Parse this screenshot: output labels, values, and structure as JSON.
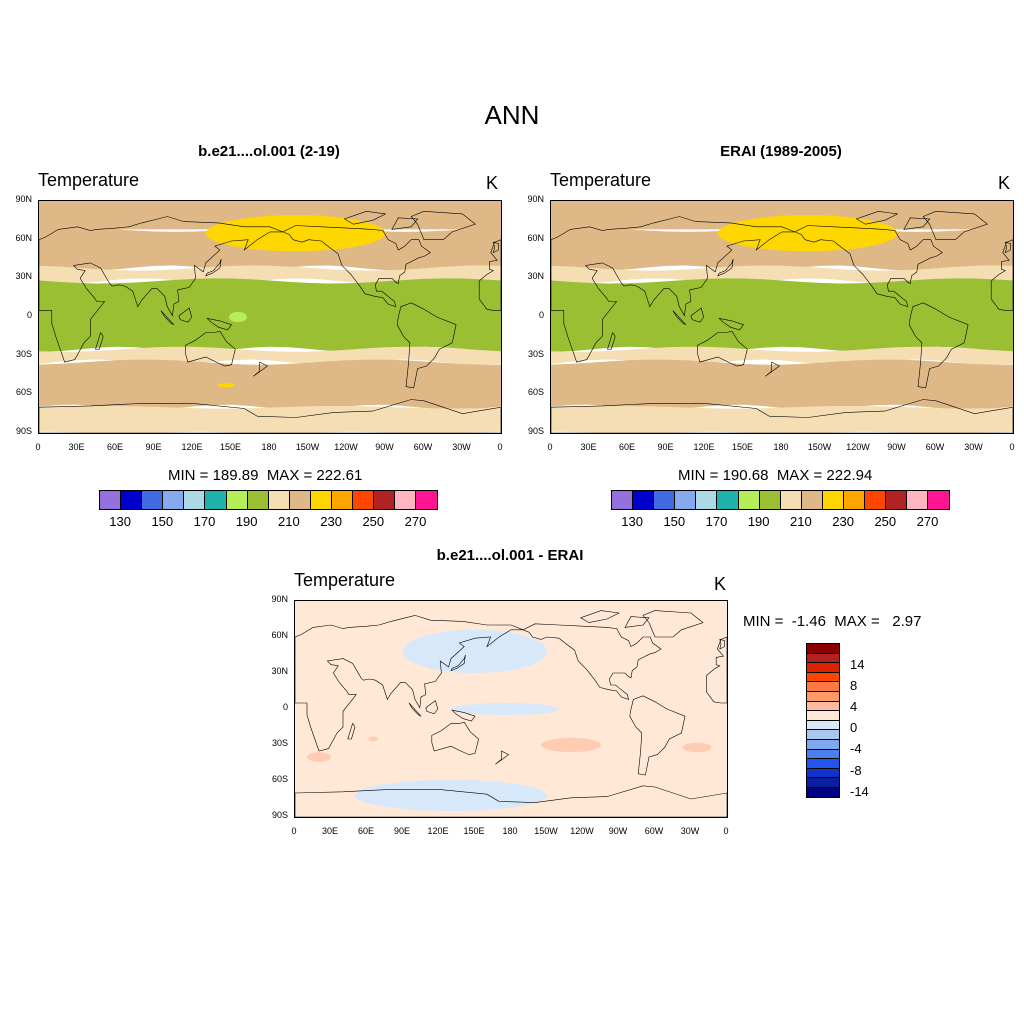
{
  "title": "ANN",
  "panels": [
    {
      "id": "model",
      "title": "b.e21....ol.001 (2-19)",
      "variable": "Temperature",
      "unit": "K",
      "min_label": "MIN = 189.89",
      "max_label": "MAX = 222.61"
    },
    {
      "id": "obs",
      "title": "ERAI (1989-2005)",
      "variable": "Temperature",
      "unit": "K",
      "min_label": "MIN = 190.68",
      "max_label": "MAX = 222.94"
    },
    {
      "id": "diff",
      "title": "b.e21....ol.001 - ERAI",
      "variable": "Temperature",
      "unit": "K",
      "min_label": "MIN =  -1.46",
      "max_label": "MAX =   2.97"
    }
  ],
  "lat_ticks": [
    "90N",
    "60N",
    "30N",
    "0",
    "30S",
    "60S",
    "90S"
  ],
  "lon_ticks": [
    "0",
    "30E",
    "60E",
    "90E",
    "120E",
    "150E",
    "180",
    "150W",
    "120W",
    "90W",
    "60W",
    "30W",
    "0"
  ],
  "abs_colorbar": {
    "colors": [
      "#9370DB",
      "#0000CD",
      "#4169E1",
      "#87A9F0",
      "#ADD8E6",
      "#20B2AA",
      "#B6EE5A",
      "#9ABF33",
      "#F5DEB3",
      "#DEB887",
      "#FFD700",
      "#FFA500",
      "#FF4500",
      "#B22222",
      "#FFB6C1",
      "#FF1493"
    ],
    "labels": [
      "130",
      "150",
      "170",
      "190",
      "210",
      "230",
      "250",
      "270"
    ]
  },
  "diff_colorbar": {
    "colors": [
      "#8B0000",
      "#B22222",
      "#DD2200",
      "#FF4500",
      "#FF7744",
      "#FF9966",
      "#FFBBA0",
      "#FFE8D6",
      "#D6E8FA",
      "#A8C8F0",
      "#7FA9EE",
      "#4A7FEE",
      "#2255EE",
      "#1133CC",
      "#0A1FA0",
      "#000080"
    ],
    "labels": [
      "14",
      "8",
      "4",
      "0",
      "-4",
      "-8",
      "-14"
    ]
  },
  "colors": {
    "band_green": "#9ABF33",
    "band_wheat": "#F5DEB3",
    "band_tan": "#DEB887",
    "band_gold": "#FFD700",
    "band_lightgreen": "#B6EE5A",
    "diff_peach": "#FFE8D6",
    "diff_blue": "#D6E8FA",
    "diff_salmon": "#FFCCB3"
  }
}
